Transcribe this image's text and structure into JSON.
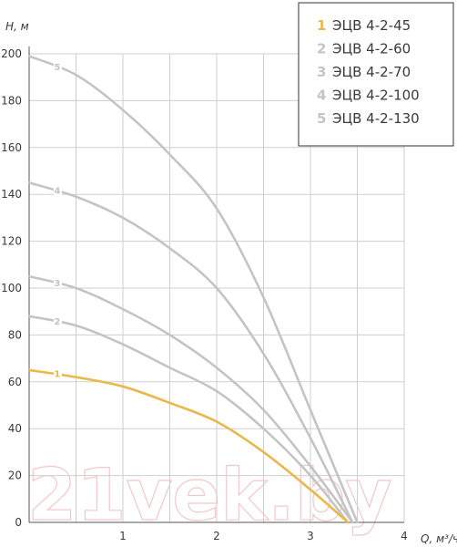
{
  "chart_data": {
    "type": "line",
    "ylabel": "H, м",
    "xlabel": "Q, м³/ч",
    "xlim": [
      0,
      4
    ],
    "ylim": [
      0,
      200
    ],
    "x_ticks": [
      "1",
      "2",
      "3",
      "4"
    ],
    "y_ticks": [
      "0",
      "20",
      "40",
      "60",
      "80",
      "100",
      "120",
      "140",
      "160",
      "180",
      "200"
    ],
    "grid": true,
    "legend_position": "top-right",
    "watermark": "21vek.by",
    "series": [
      {
        "number": "1",
        "name": "ЭЦВ 4-2-45",
        "color": "#e8b84a",
        "points": [
          [
            0,
            65
          ],
          [
            0.5,
            62
          ],
          [
            1,
            58
          ],
          [
            1.5,
            51
          ],
          [
            2,
            43
          ],
          [
            2.5,
            30
          ],
          [
            3,
            14
          ],
          [
            3.4,
            0
          ]
        ]
      },
      {
        "number": "2",
        "name": "ЭЦВ 4-2-60",
        "color": "#c4c4c4",
        "points": [
          [
            0,
            88
          ],
          [
            0.5,
            84
          ],
          [
            1,
            76
          ],
          [
            1.5,
            66
          ],
          [
            2,
            56
          ],
          [
            2.5,
            40
          ],
          [
            3,
            20
          ],
          [
            3.4,
            0
          ]
        ]
      },
      {
        "number": "3",
        "name": "ЭЦВ 4-2-70",
        "color": "#c4c4c4",
        "points": [
          [
            0,
            105
          ],
          [
            0.5,
            100
          ],
          [
            1,
            91
          ],
          [
            1.5,
            80
          ],
          [
            2,
            66
          ],
          [
            2.5,
            48
          ],
          [
            3,
            24
          ],
          [
            3.45,
            0
          ]
        ]
      },
      {
        "number": "4",
        "name": "ЭЦВ 4-2-100",
        "color": "#c4c4c4",
        "points": [
          [
            0,
            145
          ],
          [
            0.5,
            139
          ],
          [
            1,
            130
          ],
          [
            1.5,
            117
          ],
          [
            2,
            100
          ],
          [
            2.5,
            72
          ],
          [
            3,
            36
          ],
          [
            3.45,
            0
          ]
        ]
      },
      {
        "number": "5",
        "name": "ЭЦВ 4-2-130",
        "color": "#c4c4c4",
        "points": [
          [
            0,
            199
          ],
          [
            0.5,
            191
          ],
          [
            1,
            176
          ],
          [
            1.5,
            157
          ],
          [
            2,
            134
          ],
          [
            2.5,
            96
          ],
          [
            3,
            48
          ],
          [
            3.5,
            0
          ]
        ]
      }
    ]
  }
}
